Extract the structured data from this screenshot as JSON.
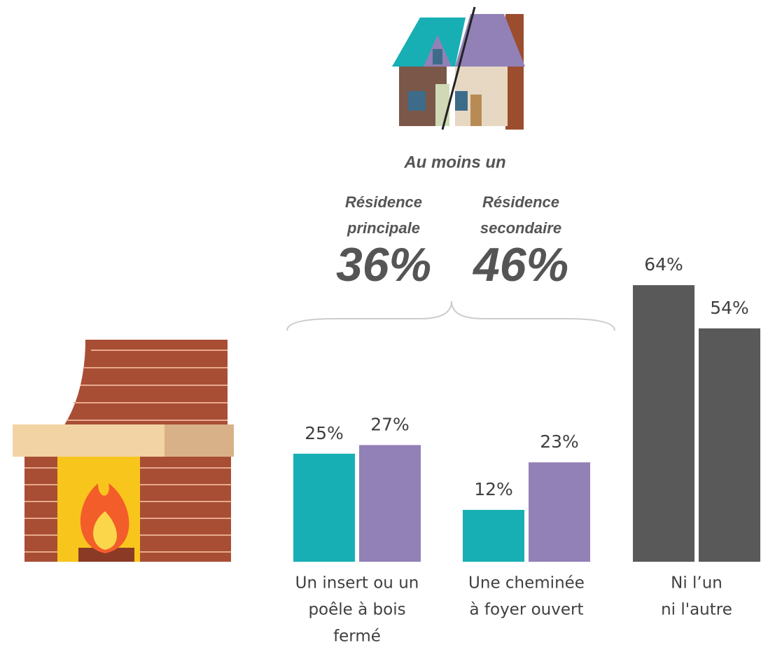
{
  "chart_data": {
    "type": "bar",
    "annotation": "Au moins un",
    "at_least_one": {
      "values": [
        36,
        46
      ],
      "value_labels": [
        "36%",
        "46%"
      ]
    },
    "categories": [
      [
        "Un insert ou un",
        "poêle à bois",
        "fermé"
      ],
      [
        "Une cheminée",
        "à foyer ouvert"
      ],
      [
        "Ni l’un",
        "ni l'autre"
      ]
    ],
    "series": [
      {
        "name": "Résidence principale",
        "color": "#17afb4",
        "colors": [
          "#17afb4",
          "#17afb4",
          "#595959"
        ],
        "values": [
          25,
          12,
          64
        ],
        "value_labels": [
          "25%",
          "12%",
          "64%"
        ]
      },
      {
        "name": "Résidence secondaire",
        "color": "#9281b6",
        "colors": [
          "#9281b6",
          "#9281b6",
          "#595959"
        ],
        "values": [
          27,
          23,
          54
        ],
        "value_labels": [
          "27%",
          "23%",
          "54%"
        ]
      }
    ]
  }
}
